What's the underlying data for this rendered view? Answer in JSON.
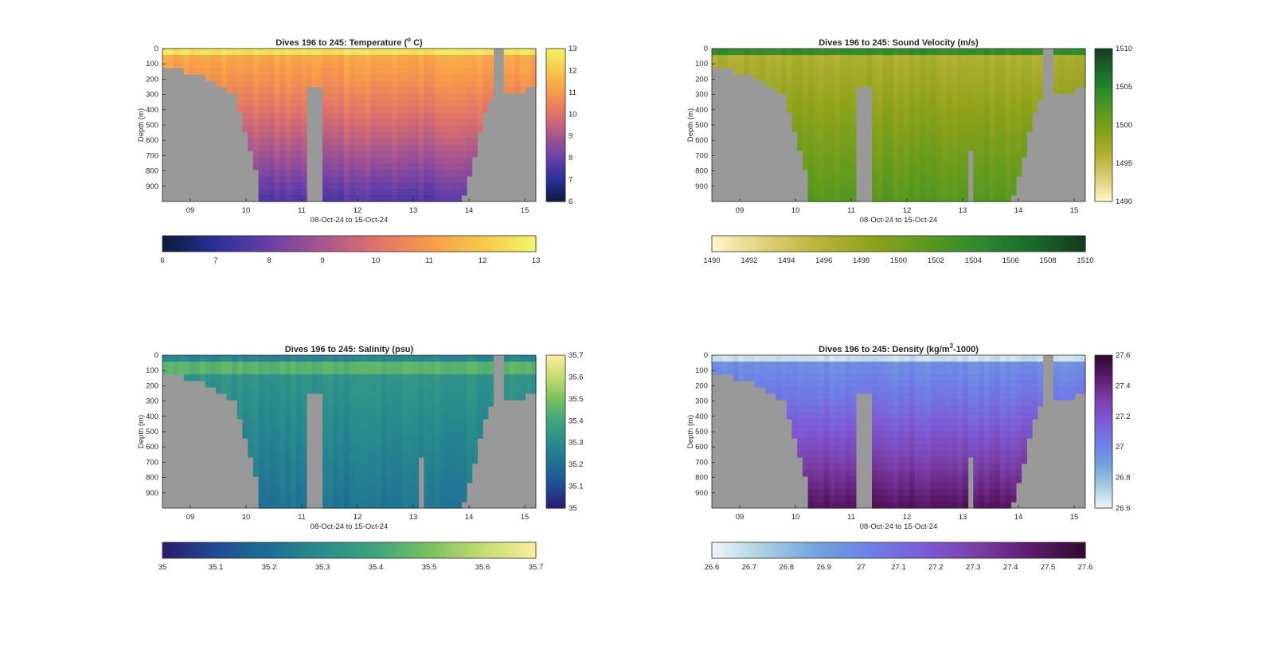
{
  "chart_data": [
    {
      "type": "heatmap",
      "title": "Dives 196 to 245: Temperature (° C)",
      "title_parts": [
        "Dives 196 to 245: Temperature (",
        "o",
        " C)"
      ],
      "xlabel": "08-Oct-24 to 15-Oct-24",
      "ylabel": "Depth (m)",
      "xticks": [
        "09",
        "10",
        "11",
        "12",
        "13",
        "14",
        "15"
      ],
      "yticks": [
        "0",
        "100",
        "200",
        "300",
        "400",
        "500",
        "600",
        "700",
        "800",
        "900"
      ],
      "ylim": [
        1000,
        0
      ],
      "xlim": [
        8.5,
        15.2
      ],
      "clim": [
        6,
        13
      ],
      "colorbar_ticks": [
        "13",
        "12",
        "11",
        "10",
        "9",
        "8",
        "7",
        "6"
      ],
      "horizontal_colorbar_ticks": [
        "6",
        "7",
        "8",
        "9",
        "10",
        "11",
        "12",
        "13"
      ],
      "colormap": [
        "#0b1b3a",
        "#2b2f9a",
        "#6a3fa8",
        "#a8568f",
        "#e0726a",
        "#f79a4a",
        "#f7c84a",
        "#f2f56a"
      ],
      "surface_value": 12.6,
      "mix_value": 11.4,
      "deep_value": 7.6,
      "gradient": "smooth",
      "column_gaps": [],
      "nodata_color": "#999999"
    },
    {
      "type": "heatmap",
      "title": "Dives 196 to 245: Sound Velocity (m/s)",
      "title_parts": [
        "Dives 196 to 245: Sound Velocity (m/s)",
        "",
        ""
      ],
      "xlabel": "08-Oct-24 to 15-Oct-24",
      "ylabel": "Depth (m)",
      "xticks": [
        "09",
        "10",
        "11",
        "12",
        "13",
        "14",
        "15"
      ],
      "yticks": [
        "0",
        "100",
        "200",
        "300",
        "400",
        "500",
        "600",
        "700",
        "800",
        "900"
      ],
      "ylim": [
        1000,
        0
      ],
      "xlim": [
        8.5,
        15.2
      ],
      "clim": [
        1490,
        1510
      ],
      "colorbar_ticks": [
        "1510",
        "1505",
        "1500",
        "1495",
        "1490"
      ],
      "horizontal_colorbar_ticks": [
        "1490",
        "1492",
        "1494",
        "1496",
        "1498",
        "1500",
        "1502",
        "1504",
        "1506",
        "1508",
        "1510"
      ],
      "colormap": [
        "#fdf6c8",
        "#e0cf7a",
        "#b9b33a",
        "#8fa21a",
        "#5d9a1e",
        "#2e8a2e",
        "#1a6a2c",
        "#143a1c"
      ],
      "surface_value": 1504,
      "mix_value": 1496,
      "deep_value": 1502,
      "gradient": "dip",
      "column_gaps": [
        13.05,
        13.15
      ],
      "nodata_color": "#999999"
    },
    {
      "type": "heatmap",
      "title": "Dives 196 to 245: Salinity (psu)",
      "title_parts": [
        "Dives 196 to 245: Salinity (psu)",
        "",
        ""
      ],
      "xlabel": "08-Oct-24 to 15-Oct-24",
      "ylabel": "Depth (m)",
      "xticks": [
        "09",
        "10",
        "11",
        "12",
        "13",
        "14",
        "15"
      ],
      "yticks": [
        "0",
        "100",
        "200",
        "300",
        "400",
        "500",
        "600",
        "700",
        "800",
        "900"
      ],
      "ylim": [
        1000,
        0
      ],
      "xlim": [
        8.5,
        15.2
      ],
      "clim": [
        35,
        35.7
      ],
      "colorbar_ticks": [
        "35.7",
        "35.6",
        "35.5",
        "35.4",
        "35.3",
        "35.2",
        "35.1",
        "35"
      ],
      "horizontal_colorbar_ticks": [
        "35",
        "35.1",
        "35.2",
        "35.3",
        "35.4",
        "35.5",
        "35.6",
        "35.7"
      ],
      "colormap": [
        "#2a1a6e",
        "#1f4c94",
        "#1e6e96",
        "#2a8c8c",
        "#3fa47c",
        "#78c25e",
        "#c4dc70",
        "#fbeea0"
      ],
      "surface_value": 35.28,
      "mix_value": 35.45,
      "deep_value": 35.22,
      "gradient": "bump",
      "column_gaps": [
        13.05,
        13.15
      ],
      "nodata_color": "#999999"
    },
    {
      "type": "heatmap",
      "title": "Dives 196 to 245: Density (kg/m³-1000)",
      "title_parts": [
        "Dives 196 to 245: Density (kg/m",
        "3",
        "-1000)"
      ],
      "xlabel": "08-Oct-24 to 15-Oct-24",
      "ylabel": "Depth (m)",
      "xticks": [
        "09",
        "10",
        "11",
        "12",
        "13",
        "14",
        "15"
      ],
      "yticks": [
        "0",
        "100",
        "200",
        "300",
        "400",
        "500",
        "600",
        "700",
        "800",
        "900"
      ],
      "ylim": [
        1000,
        0
      ],
      "xlim": [
        8.5,
        15.2
      ],
      "clim": [
        26.6,
        27.6
      ],
      "colorbar_ticks": [
        "27.6",
        "27.4",
        "27.2",
        "27",
        "26.8",
        "26.6"
      ],
      "horizontal_colorbar_ticks": [
        "26.6",
        "26.7",
        "26.8",
        "26.9",
        "27",
        "27.1",
        "27.2",
        "27.3",
        "27.4",
        "27.5",
        "27.6"
      ],
      "colormap": [
        "#eef6f8",
        "#a8cde0",
        "#6fa2e0",
        "#6f7ee6",
        "#7d5ad6",
        "#7a3ea6",
        "#5e1a6e",
        "#2e0a2e"
      ],
      "surface_value": 26.68,
      "mix_value": 26.95,
      "deep_value": 27.5,
      "gradient": "smooth",
      "column_gaps": [
        13.05,
        13.15
      ],
      "nodata_color": "#999999"
    }
  ]
}
